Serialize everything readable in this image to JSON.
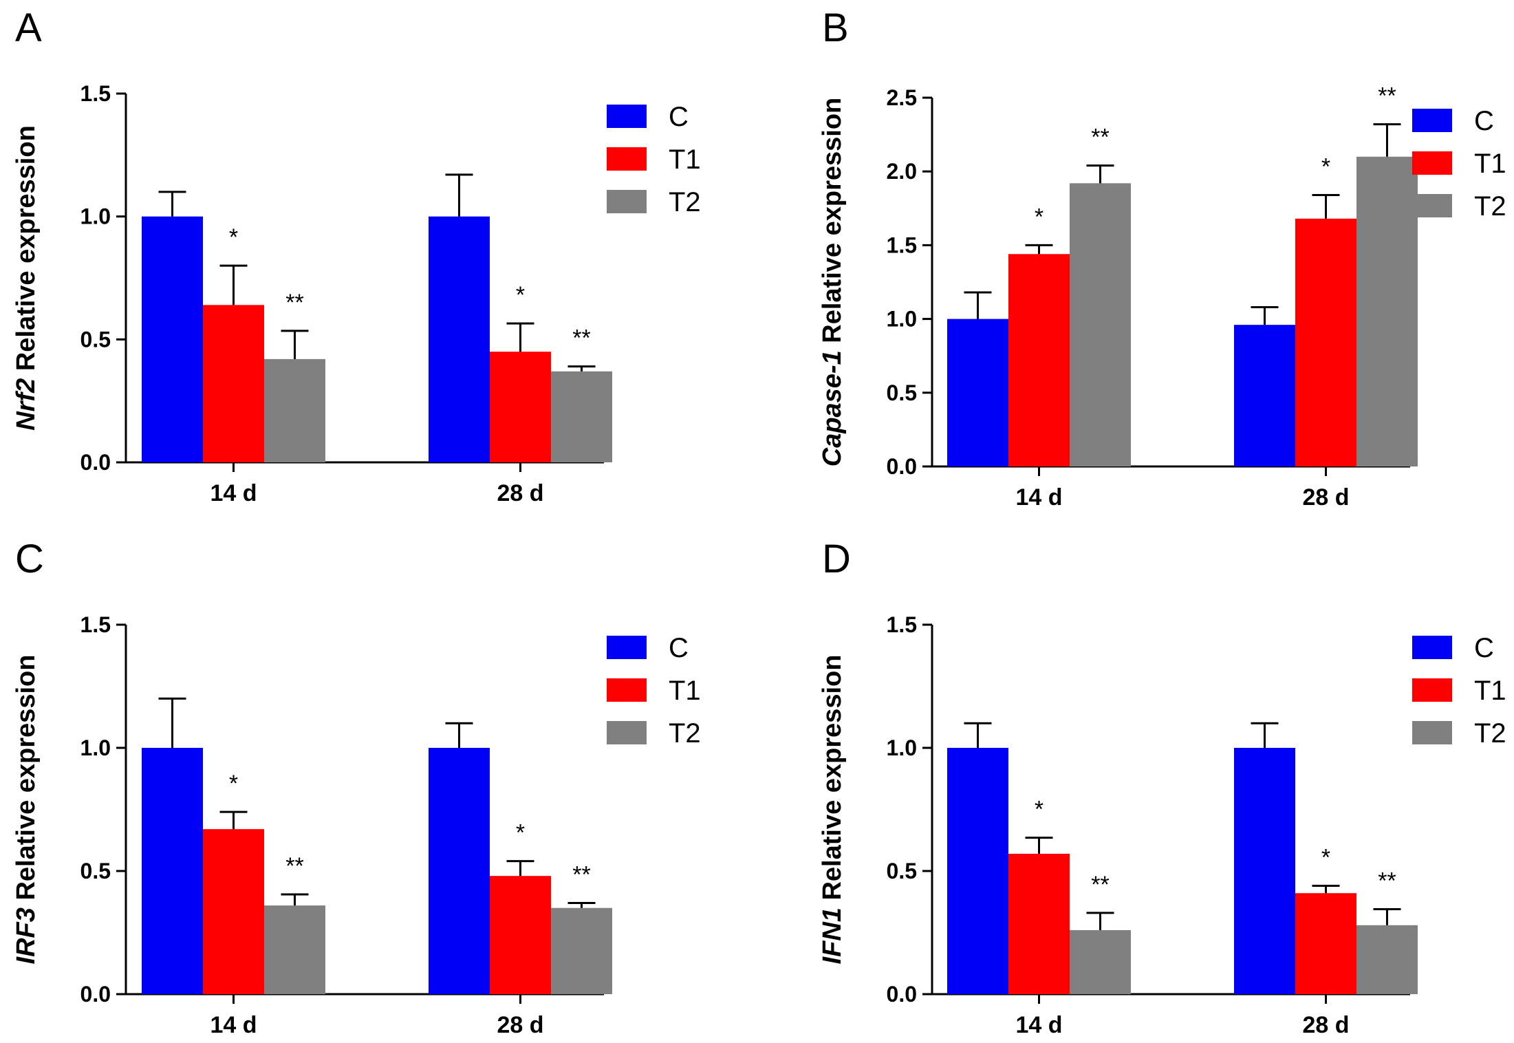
{
  "chart_data": [
    {
      "panel": "A",
      "type": "bar",
      "ylabel_gene": "Nrf2",
      "ylabel_rest": " Relative expression",
      "ylim": [
        0,
        1.5
      ],
      "yticks": [
        "0.0",
        "0.5",
        "1.0",
        "1.5"
      ],
      "categories": [
        "14 d",
        "28 d"
      ],
      "legend": [
        "C",
        "T1",
        "T2"
      ],
      "series": [
        {
          "name": "C",
          "color": "#0000f5",
          "values": [
            1.0,
            1.0
          ],
          "errors": [
            0.1,
            0.17
          ],
          "sig": [
            "",
            ""
          ]
        },
        {
          "name": "T1",
          "color": "#ff0000",
          "values": [
            0.64,
            0.45
          ],
          "errors": [
            0.16,
            0.115
          ],
          "sig": [
            "*",
            "*"
          ]
        },
        {
          "name": "T2",
          "color": "#808080",
          "values": [
            0.42,
            0.37
          ],
          "errors": [
            0.115,
            0.02
          ],
          "sig": [
            "**",
            "**"
          ]
        }
      ]
    },
    {
      "panel": "B",
      "type": "bar",
      "ylabel_gene": "Capase-1",
      "ylabel_rest": " Relative expression",
      "ylim": [
        0,
        2.5
      ],
      "yticks": [
        "0.0",
        "0.5",
        "1.0",
        "1.5",
        "2.0",
        "2.5"
      ],
      "categories": [
        "14 d",
        "28 d"
      ],
      "legend": [
        "C",
        "T1",
        "T2"
      ],
      "series": [
        {
          "name": "C",
          "color": "#0000f5",
          "values": [
            1.0,
            0.96
          ],
          "errors": [
            0.18,
            0.12
          ],
          "sig": [
            "",
            ""
          ]
        },
        {
          "name": "T1",
          "color": "#ff0000",
          "values": [
            1.44,
            1.68
          ],
          "errors": [
            0.06,
            0.16
          ],
          "sig": [
            "*",
            "*"
          ]
        },
        {
          "name": "T2",
          "color": "#808080",
          "values": [
            1.92,
            2.1
          ],
          "errors": [
            0.12,
            0.22
          ],
          "sig": [
            "**",
            "**"
          ]
        }
      ]
    },
    {
      "panel": "C",
      "type": "bar",
      "ylabel_gene": "IRF3",
      "ylabel_rest": " Relative expression",
      "ylim": [
        0,
        1.5
      ],
      "yticks": [
        "0.0",
        "0.5",
        "1.0",
        "1.5"
      ],
      "categories": [
        "14 d",
        "28 d"
      ],
      "legend": [
        "C",
        "T1",
        "T2"
      ],
      "series": [
        {
          "name": "C",
          "color": "#0000f5",
          "values": [
            1.0,
            1.0
          ],
          "errors": [
            0.2,
            0.1
          ],
          "sig": [
            "",
            ""
          ]
        },
        {
          "name": "T1",
          "color": "#ff0000",
          "values": [
            0.67,
            0.48
          ],
          "errors": [
            0.07,
            0.06
          ],
          "sig": [
            "*",
            "*"
          ]
        },
        {
          "name": "T2",
          "color": "#808080",
          "values": [
            0.36,
            0.35
          ],
          "errors": [
            0.045,
            0.02
          ],
          "sig": [
            "**",
            "**"
          ]
        }
      ]
    },
    {
      "panel": "D",
      "type": "bar",
      "ylabel_gene": "IFN1",
      "ylabel_rest": " Relative expression",
      "ylim": [
        0,
        1.5
      ],
      "yticks": [
        "0.0",
        "0.5",
        "1.0",
        "1.5"
      ],
      "categories": [
        "14 d",
        "28 d"
      ],
      "legend": [
        "C",
        "T1",
        "T2"
      ],
      "series": [
        {
          "name": "C",
          "color": "#0000f5",
          "values": [
            1.0,
            1.0
          ],
          "errors": [
            0.1,
            0.1
          ],
          "sig": [
            "",
            ""
          ]
        },
        {
          "name": "T1",
          "color": "#ff0000",
          "values": [
            0.57,
            0.41
          ],
          "errors": [
            0.065,
            0.03
          ],
          "sig": [
            "*",
            "*"
          ]
        },
        {
          "name": "T2",
          "color": "#808080",
          "values": [
            0.26,
            0.28
          ],
          "errors": [
            0.07,
            0.065
          ],
          "sig": [
            "**",
            "**"
          ]
        }
      ]
    }
  ]
}
